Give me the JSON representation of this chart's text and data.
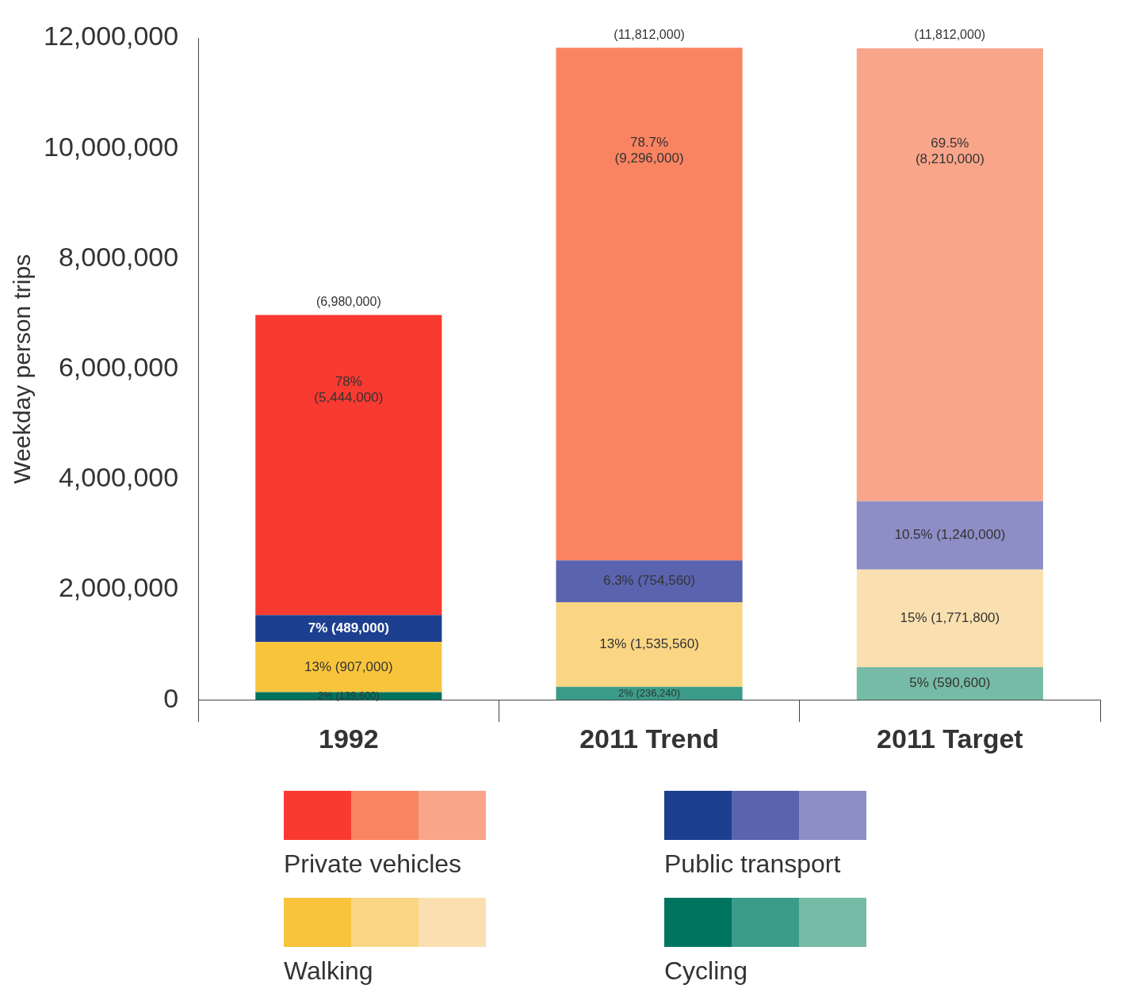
{
  "chart_data": {
    "type": "bar",
    "stacked": true,
    "ylabel": "Weekday person trips",
    "categories": [
      "1992",
      "2011 Trend",
      "2011 Target"
    ],
    "ylim": [
      0,
      12000000
    ],
    "yticks": [
      {
        "value": 0,
        "label": "0"
      },
      {
        "value": 2000000,
        "label": "2,000,000"
      },
      {
        "value": 4000000,
        "label": "4,000,000"
      },
      {
        "value": 6000000,
        "label": "6,000,000"
      },
      {
        "value": 8000000,
        "label": "8,000,000"
      },
      {
        "value": 10000000,
        "label": "10,000,000"
      },
      {
        "value": 12000000,
        "label": "12,000,000"
      }
    ],
    "grid": false,
    "legend": "bottom",
    "series": [
      {
        "name": "Cycling",
        "colors": [
          "#00745f",
          "#3a9c88",
          "#76bba6"
        ],
        "values": [
          139600,
          236240,
          590600
        ],
        "value_labels": [
          "2% (139,600)",
          "2% (236,240)",
          "5% (590,600)"
        ]
      },
      {
        "name": "Walking",
        "colors": [
          "#f8c43c",
          "#fad684",
          "#fae0b0"
        ],
        "values": [
          907000,
          1535560,
          1771800
        ],
        "value_labels": [
          "13% (907,000)",
          "13% (1,535,560)",
          "15% (1,771,800)"
        ]
      },
      {
        "name": "Public transport",
        "colors": [
          "#1d3f8f",
          "#5a63ae",
          "#8d8ec6"
        ],
        "values": [
          489000,
          754560,
          1240000
        ],
        "value_labels": [
          "7% (489,000)",
          "6.3% (754,560)",
          "10.5% (1,240,000)"
        ]
      },
      {
        "name": "Private vehicles",
        "colors": [
          "#f93a30",
          "#fa8462",
          "#f9a58a"
        ],
        "values": [
          5444000,
          9296000,
          8210000
        ],
        "value_labels": [
          "78% (5,444,000)",
          "78.7% (9,296,000)",
          "69.5% (8,210,000)"
        ]
      }
    ],
    "annotations": [
      {
        "text": "(6,980,000)",
        "x": "1992",
        "y": 6980000
      },
      {
        "text": "(11,812,000)",
        "x": "2011 Trend",
        "y": 11812000
      },
      {
        "text": "(11,812,000)",
        "x": "2011 Target",
        "y": 11812000
      }
    ]
  }
}
